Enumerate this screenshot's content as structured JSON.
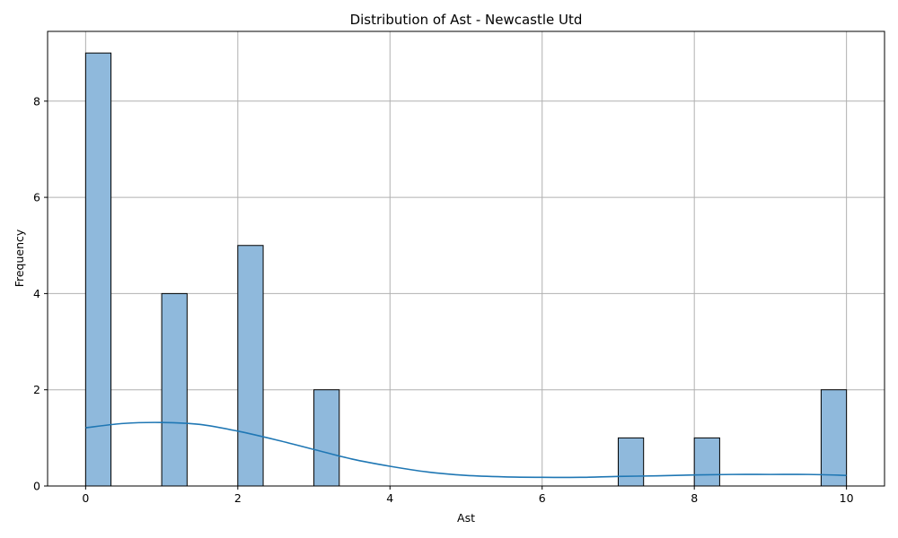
{
  "chart_data": {
    "type": "bar",
    "title": "Distribution of Ast - Newcastle Utd",
    "xlabel": "Ast",
    "ylabel": "Frequency",
    "xlim": [
      -0.5,
      10.5
    ],
    "ylim": [
      0,
      9.45
    ],
    "x_ticks": [
      0,
      2,
      4,
      6,
      8,
      10
    ],
    "y_ticks": [
      0,
      2,
      4,
      6,
      8
    ],
    "grid": true,
    "bin_width": 0.3333,
    "bins": [
      {
        "x_start": 0.0,
        "count": 9
      },
      {
        "x_start": 1.0,
        "count": 4
      },
      {
        "x_start": 2.0,
        "count": 5
      },
      {
        "x_start": 3.0,
        "count": 2
      },
      {
        "x_start": 7.0,
        "count": 1
      },
      {
        "x_start": 8.0,
        "count": 1
      },
      {
        "x_start": 9.6667,
        "count": 2
      }
    ],
    "kde_curve": {
      "x": [
        0,
        0.5,
        1,
        1.5,
        2,
        2.5,
        3,
        3.5,
        4,
        4.5,
        5,
        5.5,
        6,
        6.5,
        7,
        7.5,
        8,
        8.5,
        9,
        9.5,
        10
      ],
      "y": [
        1.21,
        1.3,
        1.32,
        1.28,
        1.14,
        0.96,
        0.76,
        0.56,
        0.41,
        0.29,
        0.22,
        0.19,
        0.18,
        0.18,
        0.2,
        0.21,
        0.23,
        0.24,
        0.24,
        0.24,
        0.22
      ]
    },
    "colors": {
      "bar_fill": "#8fb9dc",
      "bar_edge": "#000000",
      "kde_line": "#1f77b4",
      "grid": "#b0b0b0"
    }
  }
}
